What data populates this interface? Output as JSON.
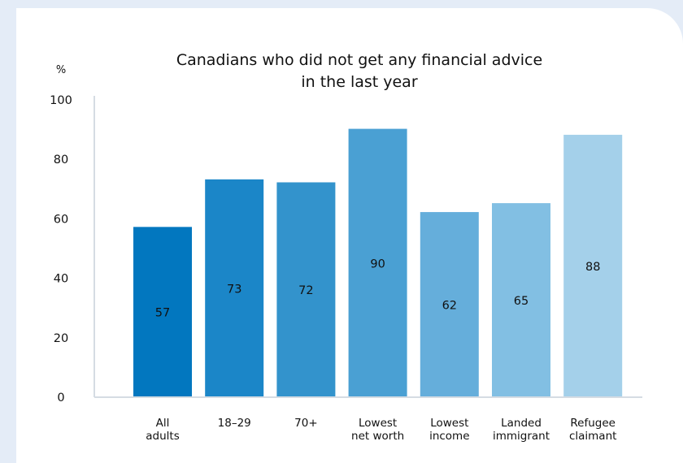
{
  "chart_data": {
    "type": "bar",
    "title": "Canadians who did not get any financial advice in the last year",
    "title_lines": [
      "Canadians who did not get any financial advice",
      "in the last year"
    ],
    "ylabel": "%",
    "xlabel": "",
    "ylim": [
      0,
      100
    ],
    "yticks": [
      0,
      20,
      40,
      60,
      80,
      100
    ],
    "grid": false,
    "categories": [
      [
        "All",
        "adults"
      ],
      [
        "18–29"
      ],
      [
        "70+"
      ],
      [
        "Lowest",
        "net worth"
      ],
      [
        "Lowest",
        "income"
      ],
      [
        "Landed",
        "immigrant"
      ],
      [
        "Refugee",
        "claimant"
      ]
    ],
    "values": [
      57,
      73,
      72,
      90,
      62,
      65,
      88
    ],
    "colors": [
      "#0277bf",
      "#1b86c8",
      "#3393cc",
      "#4aa0d3",
      "#65aedb",
      "#82bfe3",
      "#a4d0ea"
    ]
  }
}
